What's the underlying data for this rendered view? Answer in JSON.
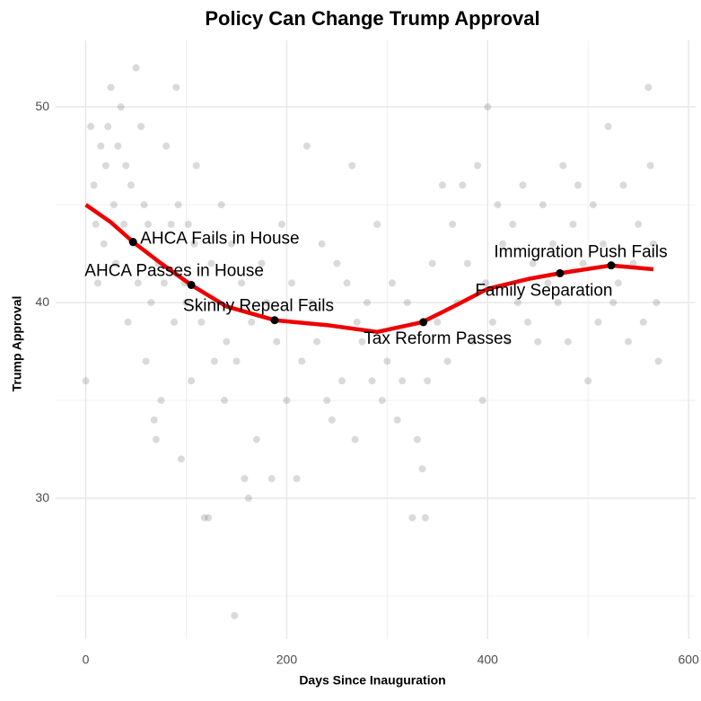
{
  "chart_data": {
    "type": "scatter",
    "title": "Policy Can Change Trump Approval",
    "xlabel": "Days Since Inauguration",
    "ylabel": "Trump Approval",
    "xlim": [
      -30,
      607
    ],
    "ylim": [
      22.8,
      53.4
    ],
    "xticks": [
      0,
      200,
      400,
      600
    ],
    "yticks": [
      30,
      40,
      50
    ],
    "xticks_minor": [
      100,
      300,
      500
    ],
    "yticks_minor": [
      25,
      35,
      45
    ],
    "grid": true,
    "points": {
      "color": "#555555",
      "x": [
        0,
        5,
        8,
        10,
        12,
        15,
        18,
        20,
        22,
        25,
        28,
        30,
        32,
        35,
        38,
        40,
        42,
        45,
        48,
        50,
        52,
        55,
        58,
        60,
        62,
        65,
        68,
        70,
        72,
        75,
        78,
        80,
        85,
        88,
        90,
        92,
        95,
        98,
        100,
        102,
        105,
        108,
        110,
        115,
        118,
        122,
        125,
        128,
        132,
        135,
        138,
        140,
        145,
        148,
        150,
        155,
        158,
        162,
        165,
        170,
        175,
        180,
        185,
        190,
        195,
        200,
        205,
        210,
        215,
        220,
        225,
        230,
        235,
        240,
        245,
        250,
        255,
        260,
        265,
        268,
        270,
        275,
        280,
        285,
        290,
        295,
        300,
        305,
        310,
        315,
        320,
        325,
        330,
        335,
        338,
        340,
        345,
        350,
        355,
        360,
        365,
        370,
        375,
        380,
        385,
        390,
        395,
        398,
        400,
        405,
        410,
        415,
        420,
        425,
        430,
        435,
        440,
        445,
        450,
        455,
        460,
        465,
        470,
        475,
        480,
        485,
        490,
        495,
        500,
        505,
        510,
        515,
        520,
        525,
        530,
        535,
        540,
        545,
        550,
        555,
        560,
        562,
        565,
        568,
        570
      ],
      "y": [
        36,
        49,
        46,
        44,
        41,
        48,
        43,
        47,
        49,
        51,
        45,
        42,
        48,
        50,
        44,
        47,
        39,
        46,
        43,
        52,
        41,
        49,
        45,
        37,
        44,
        40,
        34,
        33,
        42,
        35,
        41,
        48,
        44,
        39,
        51,
        45,
        32,
        41,
        40,
        44,
        36,
        43,
        47,
        39,
        29,
        29,
        42,
        37,
        40,
        45,
        35,
        38,
        43,
        24,
        37,
        41,
        31,
        30,
        39,
        33,
        42,
        40,
        31,
        38,
        44,
        35,
        41,
        31,
        37,
        48,
        40,
        38,
        43,
        35,
        34,
        42,
        36,
        41,
        47,
        33,
        39,
        38,
        40,
        36,
        44,
        35,
        37,
        41,
        34,
        36,
        40,
        29,
        33,
        31.5,
        29,
        36,
        42,
        39,
        46,
        37,
        44,
        40,
        46,
        42,
        38,
        47,
        35,
        41,
        50,
        39,
        45,
        43,
        38,
        44,
        40,
        46,
        39,
        42,
        38,
        45,
        41,
        43,
        40,
        47,
        38,
        44,
        46,
        42,
        36,
        45,
        39,
        43,
        49,
        40,
        41,
        46,
        38,
        42,
        44,
        39,
        51,
        47,
        43,
        40,
        37
      ]
    },
    "trend": {
      "color": "#ee0000",
      "x": [
        0,
        25,
        47,
        75,
        105,
        140,
        188,
        240,
        290,
        335,
        370,
        400,
        440,
        472,
        523,
        565
      ],
      "y": [
        45,
        44.1,
        43.1,
        42.0,
        40.9,
        39.8,
        39.1,
        38.85,
        38.5,
        39.0,
        39.9,
        40.7,
        41.2,
        41.5,
        41.9,
        41.7
      ]
    },
    "events": [
      {
        "label": "AHCA Fails in House",
        "x": 47,
        "y": 43.1
      },
      {
        "label": "AHCA Passes in House",
        "x": 105,
        "y": 40.9
      },
      {
        "label": "Skinny Repeal Fails",
        "x": 188,
        "y": 39.1
      },
      {
        "label": "Tax Reform Passes",
        "x": 336,
        "y": 39.0
      },
      {
        "label": "Family Separation",
        "x": 472,
        "y": 41.5
      },
      {
        "label": "Immigration Push Fails",
        "x": 523,
        "y": 41.9
      }
    ]
  }
}
